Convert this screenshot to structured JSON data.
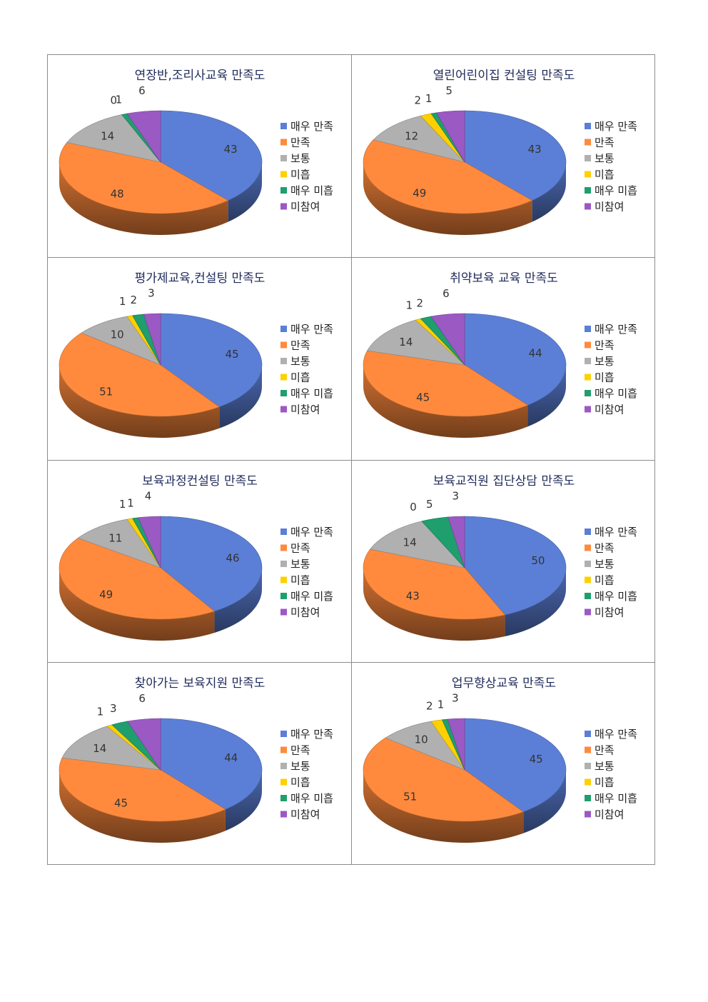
{
  "legend": [
    "매우 만족",
    "만족",
    "보통",
    "미흡",
    "매우 미흡",
    "미참여"
  ],
  "colors": [
    "#5b7fd6",
    "#ff8a3d",
    "#b0b0b0",
    "#ffd000",
    "#1f9e6e",
    "#9b59c4"
  ],
  "chart_data": [
    {
      "type": "pie",
      "title": "연장반,조리사교육 만족도",
      "values": [
        43,
        48,
        14,
        0,
        1,
        6
      ]
    },
    {
      "type": "pie",
      "title": "열린어린이집 컨설팅 만족도",
      "values": [
        43,
        49,
        12,
        2,
        1,
        5
      ]
    },
    {
      "type": "pie",
      "title": "평가제교육,컨설팅 만족도",
      "values": [
        45,
        51,
        10,
        1,
        2,
        3
      ]
    },
    {
      "type": "pie",
      "title": "취약보육 교육 만족도",
      "values": [
        44,
        45,
        14,
        1,
        2,
        6
      ]
    },
    {
      "type": "pie",
      "title": "보육과정컨설팅 만족도",
      "values": [
        46,
        49,
        11,
        1,
        1,
        4
      ]
    },
    {
      "type": "pie",
      "title": "보육교직원 집단상담 만족도",
      "values": [
        50,
        43,
        14,
        0,
        5,
        3
      ]
    },
    {
      "type": "pie",
      "title": "찾아가는 보육지원 만족도",
      "values": [
        44,
        45,
        14,
        1,
        3,
        6
      ]
    },
    {
      "type": "pie",
      "title": "업무향상교육 만족도",
      "values": [
        45,
        51,
        10,
        2,
        1,
        3
      ]
    }
  ]
}
